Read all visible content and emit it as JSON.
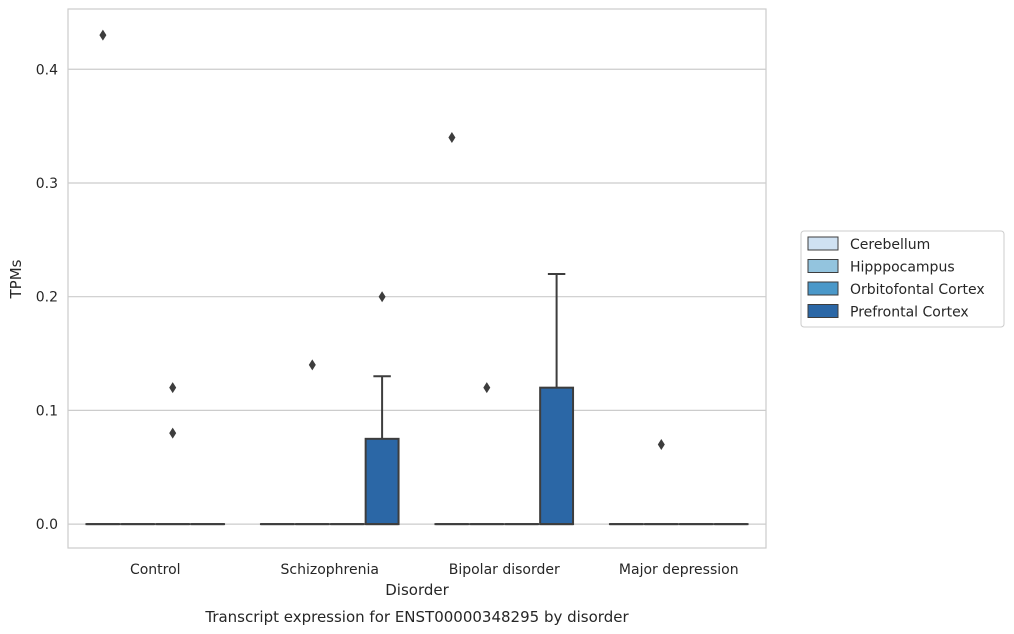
{
  "chart_data": {
    "type": "box",
    "title": "Transcript expression for ENST00000348295 by disorder",
    "xlabel": "Disorder",
    "ylabel": "TPMs",
    "ylim": [
      -0.021,
      0.453
    ],
    "yticks": [
      0.0,
      0.1,
      0.2,
      0.3,
      0.4
    ],
    "ytick_labels": [
      "0.0",
      "0.1",
      "0.2",
      "0.3",
      "0.4"
    ],
    "grid": "horizontal",
    "legend_position": "right",
    "categories": [
      "Control",
      "Schizophrenia",
      "Bipolar disorder",
      "Major depression"
    ],
    "series": [
      {
        "name": "Cerebellum",
        "color": "#cfe1f2",
        "boxes": [
          {
            "q1": 0,
            "median": 0,
            "q3": 0,
            "whislo": 0,
            "whishi": 0,
            "fliers": [
              0.43
            ]
          },
          {
            "q1": 0,
            "median": 0,
            "q3": 0,
            "whislo": 0,
            "whishi": 0,
            "fliers": []
          },
          {
            "q1": 0,
            "median": 0,
            "q3": 0,
            "whislo": 0,
            "whishi": 0,
            "fliers": [
              0.34
            ]
          },
          {
            "q1": 0,
            "median": 0,
            "q3": 0,
            "whislo": 0,
            "whishi": 0,
            "fliers": []
          }
        ]
      },
      {
        "name": "Hipppocampus",
        "color": "#93c4de",
        "boxes": [
          {
            "q1": 0,
            "median": 0,
            "q3": 0,
            "whislo": 0,
            "whishi": 0,
            "fliers": []
          },
          {
            "q1": 0,
            "median": 0,
            "q3": 0,
            "whislo": 0,
            "whishi": 0,
            "fliers": [
              0.14
            ]
          },
          {
            "q1": 0,
            "median": 0,
            "q3": 0,
            "whislo": 0,
            "whishi": 0,
            "fliers": [
              0.12
            ]
          },
          {
            "q1": 0,
            "median": 0,
            "q3": 0,
            "whislo": 0,
            "whishi": 0,
            "fliers": [
              0.07
            ]
          }
        ]
      },
      {
        "name": "Orbitofontal Cortex",
        "color": "#4a98c9",
        "boxes": [
          {
            "q1": 0,
            "median": 0,
            "q3": 0,
            "whislo": 0,
            "whishi": 0,
            "fliers": [
              0.12,
              0.08
            ]
          },
          {
            "q1": 0,
            "median": 0,
            "q3": 0,
            "whislo": 0,
            "whishi": 0,
            "fliers": []
          },
          {
            "q1": 0,
            "median": 0,
            "q3": 0,
            "whislo": 0,
            "whishi": 0,
            "fliers": []
          },
          {
            "q1": 0,
            "median": 0,
            "q3": 0,
            "whislo": 0,
            "whishi": 0,
            "fliers": []
          }
        ]
      },
      {
        "name": "Prefrontal Cortex",
        "color": "#2b67a6",
        "boxes": [
          {
            "q1": 0,
            "median": 0,
            "q3": 0,
            "whislo": 0,
            "whishi": 0,
            "fliers": []
          },
          {
            "q1": 0,
            "median": 0,
            "q3": 0.075,
            "whislo": 0,
            "whishi": 0.13,
            "fliers": [
              0.2
            ]
          },
          {
            "q1": 0,
            "median": 0,
            "q3": 0.12,
            "whislo": 0,
            "whishi": 0.22,
            "fliers": []
          },
          {
            "q1": 0,
            "median": 0,
            "q3": 0,
            "whislo": 0,
            "whishi": 0,
            "fliers": []
          }
        ]
      }
    ]
  }
}
